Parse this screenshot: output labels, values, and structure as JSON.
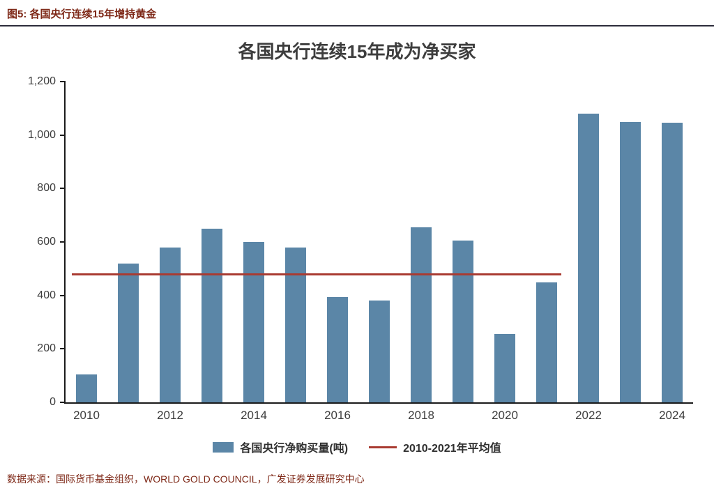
{
  "header": {
    "title": "图5:  各国央行连续15年增持黄金"
  },
  "chart_data": {
    "type": "bar",
    "title": "各国央行连续15年成为净买家",
    "categories": [
      2010,
      2011,
      2012,
      2013,
      2014,
      2015,
      2016,
      2017,
      2018,
      2019,
      2020,
      2021,
      2022,
      2023,
      2024
    ],
    "values": [
      105,
      520,
      580,
      650,
      600,
      580,
      395,
      380,
      655,
      605,
      255,
      450,
      1080,
      1050,
      1045
    ],
    "ylim": [
      0,
      1200
    ],
    "ytick_step": 200,
    "ytick_labels": [
      "0",
      "200",
      "400",
      "600",
      "800",
      "1,000",
      "1,200"
    ],
    "x_tick_labels": [
      "2010",
      "2012",
      "2014",
      "2016",
      "2018",
      "2020",
      "2022",
      "2024"
    ],
    "grid": false,
    "legend_position": "bottom",
    "bar_color": "#5b86a7",
    "axis_color": "#1a1a1a",
    "avg_line": {
      "value": 480,
      "color": "#a93b32",
      "span_start_year": 2010,
      "span_end_year": 2021
    },
    "legend": [
      {
        "label": "各国央行净购买量(吨)",
        "type": "bar"
      },
      {
        "label": "2010-2021年平均值",
        "type": "line"
      }
    ]
  },
  "footer": {
    "source": "数据来源：国际货币基金组织，WORLD GOLD COUNCIL，广发证券发展研究中心"
  }
}
